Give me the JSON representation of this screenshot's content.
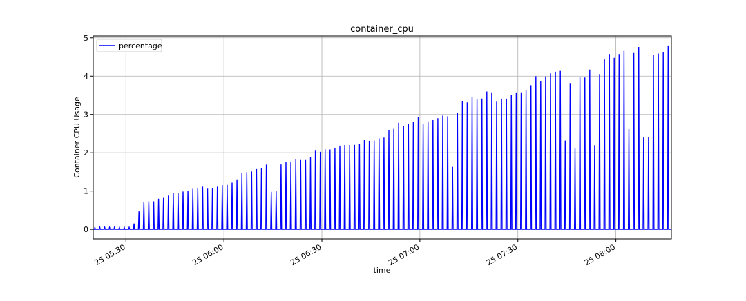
{
  "chart_data": {
    "type": "line",
    "title": "container_cpu",
    "xlabel": "time",
    "ylabel": "Container CPU Usage",
    "x_axis": {
      "type": "datetime",
      "range": [
        "25 05:20",
        "25 08:17"
      ],
      "ticks": [
        "25 05:30",
        "25 06:00",
        "25 06:30",
        "25 07:00",
        "25 07:30",
        "25 08:00"
      ]
    },
    "ylim": [
      -0.25,
      5.05
    ],
    "yticks": [
      "0",
      "1",
      "2",
      "3",
      "4",
      "5"
    ],
    "yticks_values": [
      0,
      1,
      2,
      3,
      4,
      5
    ],
    "grid": true,
    "legend": {
      "placement": "upper-left",
      "entries": [
        "percentage"
      ]
    },
    "series": [
      {
        "name": "percentage",
        "color": "#0000ff",
        "style": "periodic-spikes",
        "baseline_value": 0,
        "spike_interval_minutes": 1.5,
        "peak_trend": [
          {
            "time": "25 05:20",
            "peak": 0.05
          },
          {
            "time": "25 05:32",
            "peak": 0.05
          },
          {
            "time": "25 05:35",
            "peak": 0.7
          },
          {
            "time": "25 05:45",
            "peak": 0.9
          },
          {
            "time": "25 06:00",
            "peak": 1.2
          },
          {
            "time": "25 06:15",
            "peak": 1.7
          },
          {
            "time": "25 06:30",
            "peak": 2.0
          },
          {
            "time": "25 06:45",
            "peak": 2.4
          },
          {
            "time": "25 07:00",
            "peak": 2.85
          },
          {
            "time": "25 07:15",
            "peak": 3.3
          },
          {
            "time": "25 07:30",
            "peak": 3.7
          },
          {
            "time": "25 07:45",
            "peak": 4.0
          },
          {
            "time": "25 08:00",
            "peak": 4.4
          },
          {
            "time": "25 08:17",
            "peak": 4.85
          }
        ]
      }
    ]
  }
}
